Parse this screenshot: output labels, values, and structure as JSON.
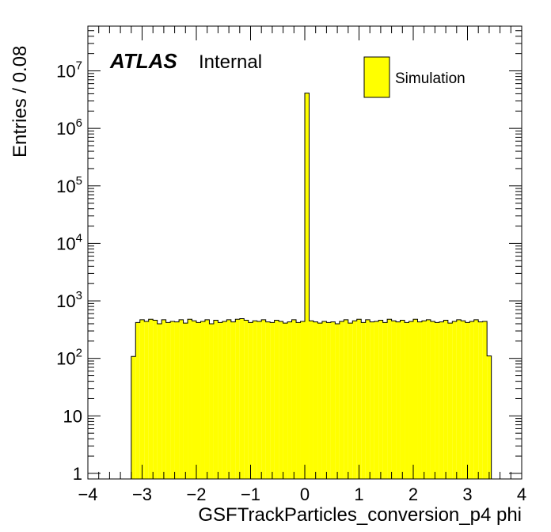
{
  "chart_data": {
    "type": "bar",
    "xlabel": "GSFTrackParticles_conversion_p4 phi",
    "ylabel": "Entries / 0.08",
    "xlim": [
      -4,
      4
    ],
    "ylim": [
      0.8,
      60000000
    ],
    "yscale": "log",
    "x_ticks": [
      "−4",
      "−3",
      "−2",
      "−1",
      "0",
      "1",
      "2",
      "3",
      "4"
    ],
    "y_ticks": [
      {
        "base": "1",
        "exp": ""
      },
      {
        "base": "10",
        "exp": ""
      },
      {
        "base": "10",
        "exp": "2"
      },
      {
        "base": "10",
        "exp": "3"
      },
      {
        "base": "10",
        "exp": "4"
      },
      {
        "base": "10",
        "exp": "5"
      },
      {
        "base": "10",
        "exp": "6"
      },
      {
        "base": "10",
        "exp": "7"
      }
    ],
    "bin_start": -4,
    "bin_width": 0.08,
    "values": [
      0,
      0,
      0,
      0,
      0,
      0,
      0,
      0,
      0,
      0,
      108,
      420,
      470,
      440,
      480,
      460,
      400,
      470,
      420,
      440,
      430,
      470,
      410,
      480,
      450,
      420,
      440,
      470,
      400,
      460,
      420,
      440,
      470,
      430,
      480,
      490,
      460,
      420,
      450,
      440,
      470,
      430,
      420,
      460,
      440,
      410,
      430,
      470,
      420,
      440,
      4100000,
      450,
      430,
      410,
      440,
      420,
      430,
      400,
      440,
      470,
      410,
      450,
      480,
      420,
      470,
      430,
      440,
      460,
      420,
      480,
      450,
      430,
      460,
      420,
      440,
      480,
      430,
      450,
      470,
      440,
      420,
      430,
      460,
      410,
      440,
      470,
      450,
      420,
      440,
      470,
      430,
      440,
      110,
      0,
      0,
      0,
      0,
      0,
      0,
      0,
      0
    ],
    "fill_color": "#ffff00",
    "atlas_label": "ATLAS",
    "atlas_sublabel": "Internal",
    "legend": {
      "label": "Simulation",
      "position": "top-right"
    },
    "grid": false
  }
}
